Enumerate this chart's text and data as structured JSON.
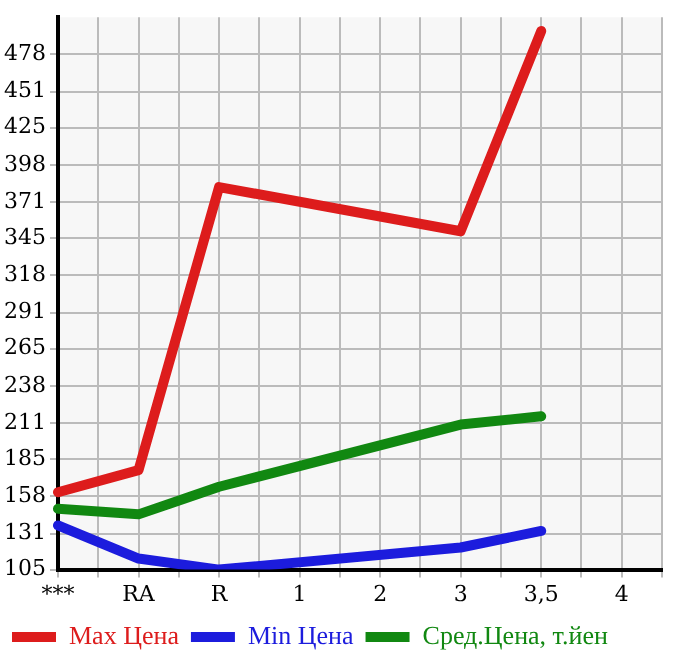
{
  "chart_data": {
    "type": "line",
    "categories": [
      "***",
      null,
      "RA",
      null,
      "R",
      null,
      "1",
      null,
      "2",
      null,
      "3",
      null,
      "3,5",
      null,
      "4",
      null
    ],
    "series": [
      {
        "name": "Max Цена",
        "color": "#dd1c1c",
        "values": [
          161,
          null,
          177,
          null,
          382,
          null,
          null,
          null,
          null,
          null,
          350,
          null,
          495,
          null,
          null,
          null
        ]
      },
      {
        "name": "Min Цена",
        "color": "#1c1cdd",
        "values": [
          137,
          null,
          113,
          null,
          105,
          null,
          null,
          null,
          null,
          null,
          121,
          null,
          133,
          null,
          null,
          null
        ]
      },
      {
        "name": "Сред.Цена, т.йен",
        "color": "#118811",
        "values": [
          149,
          null,
          145,
          null,
          165,
          null,
          null,
          null,
          null,
          null,
          210,
          null,
          216,
          null,
          null,
          null
        ]
      }
    ],
    "ylim": [
      105,
      505
    ],
    "yticks": [
      105,
      131,
      158,
      185,
      211,
      238,
      265,
      291,
      318,
      345,
      371,
      398,
      425,
      451,
      478
    ],
    "grid": true,
    "legend": "bottom",
    "marker": "none",
    "line_style": "solid"
  }
}
